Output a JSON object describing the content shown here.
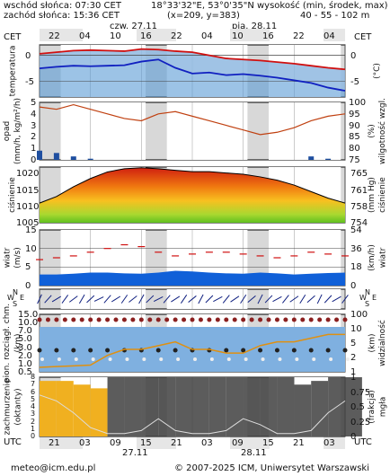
{
  "header": {
    "sunrise": "wschód słońca: 07:30 CET",
    "sunset": "zachód słońca: 15:36 CET",
    "coords": "18°33'32\"E, 53°0'35\"N",
    "grid": "(x=209, y=383)",
    "elev_title": "wysokość (min, środek, max)",
    "elev_values": "40 - 55 - 102 m",
    "day1": "czw. 27.11",
    "day2": "pią. 28.11",
    "tz": "CET",
    "utc": "UTC"
  },
  "footer": {
    "email": "meteo@icm.edu.pl",
    "copyright": "© 2007-2025 ICM, Uniwersytet Warszawski"
  },
  "chart_data": {
    "type": "line",
    "hours_cet": [
      "22",
      "04",
      "10",
      "16",
      "22",
      "04",
      "10",
      "16",
      "22",
      "04"
    ],
    "hours_utc": [
      "21",
      "03",
      "09",
      "15",
      "21",
      "03",
      "09",
      "15",
      "21",
      "03"
    ],
    "utc_dates": [
      "27.11",
      "28.11"
    ],
    "panels": [
      {
        "name": "temperatura",
        "left_label": "temperatura",
        "right_label": "(°C)",
        "left_ticks": [
          "0",
          "-5"
        ],
        "right_ticks": [
          "0",
          "-5"
        ],
        "ylim": [
          -8,
          2
        ],
        "series": [
          {
            "name": "max",
            "values": [
              0.3,
              0.6,
              0.9,
              1.0,
              0.9,
              0.8,
              1.2,
              1.1,
              0.8,
              0.6,
              0.0,
              -0.6,
              -0.8,
              -1.0,
              -1.3,
              -1.6,
              -2.0,
              -2.4,
              -2.7
            ]
          },
          {
            "name": "min",
            "values": [
              -2.5,
              -2.2,
              -2.0,
              -2.1,
              -2.0,
              -1.9,
              -1.2,
              -0.8,
              -2.4,
              -3.5,
              -3.3,
              -3.8,
              -3.6,
              -3.9,
              -4.3,
              -4.8,
              -5.3,
              -6.2,
              -6.8
            ]
          }
        ],
        "x": [
          0,
          2,
          4,
          6,
          8,
          10,
          12,
          14,
          16,
          18,
          20,
          22,
          24,
          26,
          28,
          30,
          32,
          34,
          36
        ]
      },
      {
        "name": "opad",
        "left_label": "opad",
        "left_unit": "(mm/h, kg/m²/h)",
        "right_label": "wilgotność wzgl.",
        "right_unit": "(%)",
        "left_ticks": [
          "5",
          "4",
          "3",
          "2",
          "1",
          "0"
        ],
        "right_ticks": [
          "100",
          "95",
          "90",
          "85",
          "80",
          "75"
        ],
        "ylim": [
          75,
          100
        ],
        "series": [
          {
            "name": "humidity",
            "values": [
              98,
              97,
              99,
              97,
              95,
              93,
              92,
              95,
              96,
              94,
              92,
              90,
              88,
              86,
              87,
              89,
              92,
              94,
              95
            ]
          }
        ],
        "precip": [
          0.8,
          0.6,
          0.3,
          0.1,
          0,
          0,
          0,
          0,
          0,
          0,
          0,
          0,
          0,
          0,
          0,
          0,
          0.3,
          0.1,
          0
        ],
        "x": [
          0,
          2,
          4,
          6,
          8,
          10,
          12,
          14,
          16,
          18,
          20,
          22,
          24,
          26,
          28,
          30,
          32,
          34,
          36
        ]
      },
      {
        "name": "ciśnienie",
        "left_label": "ciśnienie",
        "right_label": "ciśnienie",
        "right_unit": "(mm Hg)",
        "left_ticks": [
          "1020",
          "1015",
          "1010",
          "1005"
        ],
        "right_ticks": [
          "765",
          "761",
          "758",
          "754"
        ],
        "ylim": [
          1005,
          1022
        ],
        "series": [
          {
            "name": "pressure",
            "values": [
              1011,
              1013,
              1016,
              1018.5,
              1020.5,
              1021.5,
              1021.8,
              1021.5,
              1021,
              1020.6,
              1020.6,
              1020.2,
              1019.8,
              1019,
              1018,
              1016.5,
              1014.5,
              1012.5,
              1011
            ]
          }
        ],
        "x": [
          0,
          2,
          4,
          6,
          8,
          10,
          12,
          14,
          16,
          18,
          20,
          22,
          24,
          26,
          28,
          30,
          32,
          34,
          36
        ]
      },
      {
        "name": "wiatr",
        "left_label": "wiatr",
        "left_unit": "(m/s)",
        "right_label": "wiatr",
        "right_unit": "(km/h)",
        "left_ticks": [
          "15",
          "10",
          "5",
          "0"
        ],
        "right_ticks": [
          "54",
          "36",
          "18",
          "0"
        ],
        "ylim": [
          0,
          15
        ],
        "series": [
          {
            "name": "wind",
            "values": [
              3,
              3,
              3.2,
              3.5,
              3.5,
              3.3,
              3.2,
              3.5,
              4,
              3.8,
              3.5,
              3.3,
              3.2,
              3.5,
              3.3,
              3,
              3.2,
              3.4,
              3.5
            ]
          },
          {
            "name": "gusts",
            "values": [
              7,
              7.5,
              8,
              9,
              10,
              11,
              10.5,
              9,
              8,
              8.5,
              9,
              9,
              8.5,
              8,
              7.5,
              8,
              9,
              8.5,
              8
            ]
          }
        ],
        "x": [
          0,
          2,
          4,
          6,
          8,
          10,
          12,
          14,
          16,
          18,
          20,
          22,
          24,
          26,
          28,
          30,
          32,
          34,
          36
        ]
      },
      {
        "name": "kierunek",
        "compass": [
          "N",
          "W",
          "E",
          "S"
        ]
      },
      {
        "name": "chmury",
        "left_label": "pion. rozciągł. chm.",
        "left_unit": "(km)",
        "right_label": "widzialność",
        "right_unit": "(km)",
        "left_ticks": [
          "15.0",
          "10.0",
          "7.0",
          "5.0",
          "3.0",
          "2.0",
          "1.0",
          "0.5"
        ],
        "right_ticks": [
          "100",
          "10",
          "5",
          "2",
          "1"
        ],
        "series": [
          {
            "name": "visibility",
            "values": [
              0.6,
              0.7,
              0.8,
              0.9,
              2.2,
              3.0,
              3.0,
              3.5,
              4.0,
              3.0,
              3.0,
              2.5,
              2.5,
              3.5,
              4.0,
              4.0,
              4.5,
              5.0,
              5.0
            ]
          }
        ],
        "x": [
          0,
          2,
          4,
          6,
          8,
          10,
          12,
          14,
          16,
          18,
          20,
          22,
          24,
          26,
          28,
          30,
          32,
          34,
          36
        ]
      },
      {
        "name": "zachmurzenie",
        "left_label": "zachmurzenie",
        "left_unit": "(oktanty)",
        "right_label": "mgła",
        "right_unit": "(frakcja)",
        "left_ticks": [
          "8",
          "7",
          "6",
          "5",
          "4",
          "3",
          "2",
          "1",
          "0"
        ],
        "right_ticks": [
          "1",
          "0.75",
          "0.5",
          "0.25",
          "0"
        ],
        "series": [
          {
            "name": "fog",
            "values": [
              0.7,
              0.6,
              0.4,
              0.15,
              0.05,
              0.05,
              0.1,
              0.3,
              0.1,
              0.05,
              0.05,
              0.1,
              0.3,
              0.2,
              0.05,
              0.05,
              0.1,
              0.4,
              0.6
            ]
          }
        ],
        "cloud_octants": [
          7.5,
          7.5,
          7,
          6.5,
          8,
          8,
          8,
          8,
          8,
          8,
          8,
          8,
          8,
          8,
          8,
          7,
          7.5,
          8,
          8
        ],
        "x": [
          0,
          2,
          4,
          6,
          8,
          10,
          12,
          14,
          16,
          18,
          20,
          22,
          24,
          26,
          28,
          30,
          32,
          34,
          36
        ]
      }
    ]
  }
}
